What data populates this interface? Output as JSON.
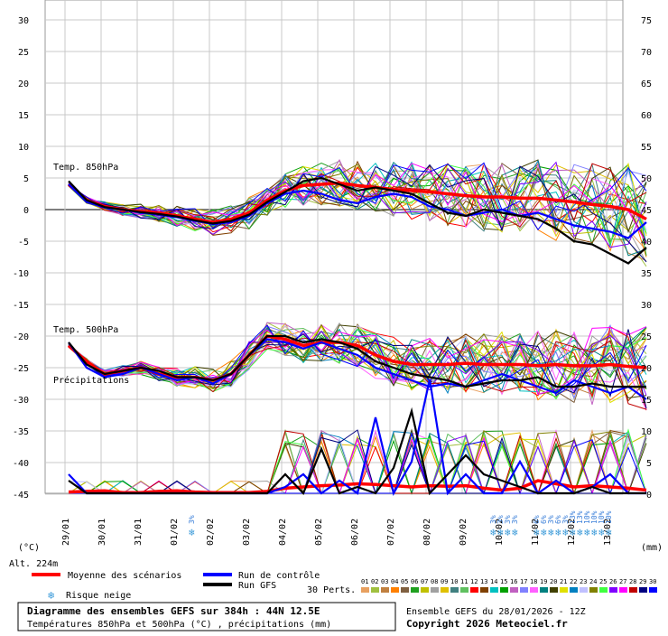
{
  "chart_data": {
    "type": "line",
    "left_axis_label": "(°C)",
    "right_axis_label": "(mm)",
    "left_ticks": [
      30,
      25,
      20,
      15,
      10,
      5,
      0,
      -5,
      -10,
      -15,
      -20,
      -25,
      -30,
      -35,
      -40,
      -45
    ],
    "right_ticks": [
      75,
      70,
      65,
      60,
      55,
      50,
      45,
      40,
      35,
      30,
      25,
      20,
      15,
      10,
      5,
      0
    ],
    "dates": [
      "29/01",
      "30/01",
      "31/01",
      "01/02",
      "02/02",
      "03/02",
      "04/02",
      "05/02",
      "06/02",
      "07/02",
      "08/02",
      "09/02",
      "10/02",
      "11/02",
      "12/02",
      "13/02"
    ],
    "panel_labels": {
      "t850": "Temp. 850hPa",
      "t500": "Temp. 500hPa",
      "precip": "Précipitations"
    },
    "altitude": "Alt. 224m",
    "legend": {
      "mean": "Moyenne des scénarios",
      "control": "Run de contrôle",
      "gfs": "Run GFS",
      "snow": "Risque neige",
      "perts": "30 Perts.",
      "pert_numbers": [
        "01",
        "02",
        "03",
        "04",
        "05",
        "06",
        "07",
        "08",
        "09",
        "10",
        "11",
        "12",
        "13",
        "14",
        "15",
        "16",
        "17",
        "18",
        "19",
        "20",
        "21",
        "22",
        "23",
        "24",
        "25",
        "26",
        "27",
        "28",
        "29",
        "30"
      ]
    },
    "pert_colors": [
      "#e8a060",
      "#a0c040",
      "#c08040",
      "#ff8000",
      "#806040",
      "#20a020",
      "#c0c000",
      "#a0a0a0",
      "#e0c000",
      "#408080",
      "#60c060",
      "#ff0000",
      "#804000",
      "#00c0c0",
      "#00a000",
      "#c060c0",
      "#8080ff",
      "#ff60ff",
      "#008080",
      "#404000",
      "#e0e000",
      "#0080c0",
      "#c0c0ff",
      "#808000",
      "#40ff40",
      "#8000ff",
      "#ff00ff",
      "#c00000",
      "#000080",
      "#0000ff"
    ],
    "snow_risk": [
      {
        "date_index": 3.5,
        "labels": [
          "3%"
        ]
      },
      {
        "date_index": 12.1,
        "labels": [
          "3%",
          "3%",
          "3%",
          "3%"
        ]
      },
      {
        "date_index": 13.3,
        "labels": [
          "6%",
          "6%",
          "3%",
          "6%",
          "3%",
          "13%",
          "13%",
          "10%",
          "10%",
          "10%",
          "10%"
        ]
      }
    ],
    "series": [
      {
        "name": "Moyenne des scénarios",
        "panel": "t850",
        "color": "#ff0000",
        "x": [
          0,
          0.5,
          1,
          1.5,
          2,
          2.5,
          3,
          3.5,
          4,
          4.5,
          5,
          5.5,
          6,
          6.5,
          7,
          7.5,
          8,
          8.5,
          9,
          9.5,
          10,
          10.5,
          11,
          11.5,
          12,
          12.5,
          13,
          13.5,
          14,
          14.5,
          15,
          15.5,
          16
        ],
        "y": [
          4,
          1.5,
          0.5,
          0,
          -0.3,
          -0.5,
          -1,
          -1.5,
          -2,
          -1.5,
          -0.5,
          1.5,
          3,
          3.8,
          4,
          4.2,
          3.8,
          3.5,
          3.2,
          3,
          2.8,
          2.5,
          2.2,
          2,
          2,
          1.8,
          1.8,
          1.5,
          1.2,
          0.8,
          0.5,
          0,
          -1.5
        ]
      },
      {
        "name": "Run de contrôle",
        "panel": "t850",
        "color": "#0000ff",
        "x": [
          0,
          0.5,
          1,
          1.5,
          2,
          2.5,
          3,
          3.5,
          4,
          4.5,
          5,
          5.5,
          6,
          6.5,
          7,
          7.5,
          8,
          8.5,
          9,
          9.5,
          10,
          10.5,
          11,
          11.5,
          12,
          12.5,
          13,
          13.5,
          14,
          14.5,
          15,
          15.5,
          16
        ],
        "y": [
          4,
          1.2,
          0.3,
          0,
          -0.5,
          -0.8,
          -1.2,
          -1.8,
          -2.3,
          -2,
          -1,
          1,
          2.5,
          3,
          2.5,
          1.5,
          1,
          2,
          2.5,
          2,
          0.5,
          0,
          -1,
          -0.5,
          0,
          -1,
          -0.5,
          -1.5,
          -2.5,
          -3,
          -3.5,
          -4.5,
          -2
        ]
      },
      {
        "name": "Run GFS",
        "panel": "t850",
        "color": "#000000",
        "x": [
          0,
          0.5,
          1,
          1.5,
          2,
          2.5,
          3,
          3.5,
          4,
          4.5,
          5,
          5.5,
          6,
          6.5,
          7,
          7.5,
          8,
          8.5,
          9,
          9.5,
          10,
          10.5,
          11,
          11.5,
          12,
          12.5,
          13,
          13.5,
          14,
          14.5,
          15,
          15.5,
          16
        ],
        "y": [
          4.5,
          1.5,
          0.4,
          0,
          -0.4,
          -0.7,
          -1.1,
          -1.7,
          -2.2,
          -1.8,
          -0.8,
          1.2,
          2.8,
          4.5,
          5,
          4,
          3,
          3.5,
          3,
          2.5,
          1,
          -0.5,
          -1,
          0,
          -0.5,
          -1,
          -1.5,
          -3,
          -5,
          -5.5,
          -7,
          -8.5,
          -6
        ]
      },
      {
        "name": "Moyenne des scénarios",
        "panel": "t500",
        "color": "#ff0000",
        "x": [
          0,
          0.5,
          1,
          1.5,
          2,
          2.5,
          3,
          3.5,
          4,
          4.5,
          5,
          5.5,
          6,
          6.5,
          7,
          7.5,
          8,
          8.5,
          9,
          9.5,
          10,
          10.5,
          11,
          11.5,
          12,
          12.5,
          13,
          13.5,
          14,
          14.5,
          15,
          15.5,
          16
        ],
        "y": [
          -21.5,
          -24,
          -26,
          -25.5,
          -25,
          -26,
          -26.5,
          -26.5,
          -27,
          -26,
          -23,
          -20,
          -20.5,
          -21.5,
          -21,
          -21,
          -21.5,
          -23,
          -24,
          -24.5,
          -24.5,
          -24.5,
          -24.3,
          -24.5,
          -24.5,
          -24.5,
          -24.7,
          -24.5,
          -24.7,
          -24.7,
          -24.5,
          -24.8,
          -25
        ]
      },
      {
        "name": "Run de contrôle",
        "panel": "t500",
        "color": "#0000ff",
        "x": [
          0,
          0.5,
          1,
          1.5,
          2,
          2.5,
          3,
          3.5,
          4,
          4.5,
          5,
          5.5,
          6,
          6.5,
          7,
          7.5,
          8,
          8.5,
          9,
          9.5,
          10,
          10.5,
          11,
          11.5,
          12,
          12.5,
          13,
          13.5,
          14,
          14.5,
          15,
          15.5,
          16
        ],
        "y": [
          -21,
          -25,
          -26.5,
          -26,
          -25,
          -26,
          -27,
          -26.5,
          -27.5,
          -26,
          -23,
          -20.5,
          -21,
          -22,
          -21,
          -22,
          -23,
          -25,
          -26,
          -27,
          -28,
          -27.5,
          -28,
          -27,
          -26,
          -27,
          -28,
          -29,
          -27,
          -28,
          -29,
          -28,
          -30
        ]
      },
      {
        "name": "Run GFS",
        "panel": "t500",
        "color": "#000000",
        "x": [
          0,
          0.5,
          1,
          1.5,
          2,
          2.5,
          3,
          3.5,
          4,
          4.5,
          5,
          5.5,
          6,
          6.5,
          7,
          7.5,
          8,
          8.5,
          9,
          9.5,
          10,
          10.5,
          11,
          11.5,
          12,
          12.5,
          13,
          13.5,
          14,
          14.5,
          15,
          15.5,
          16
        ],
        "y": [
          -21,
          -24.5,
          -26,
          -25.5,
          -25,
          -25.5,
          -26.5,
          -26.5,
          -27,
          -26,
          -23,
          -20,
          -20,
          -21,
          -20.5,
          -21,
          -22,
          -24,
          -25,
          -26,
          -26.5,
          -27,
          -28,
          -27.5,
          -27,
          -27,
          -26.5,
          -28,
          -28,
          -27.5,
          -28,
          -28,
          -28
        ]
      },
      {
        "name": "Moyenne des scénarios",
        "panel": "precip",
        "color": "#ff0000",
        "x": [
          0,
          0.5,
          1,
          1.5,
          2,
          2.5,
          3,
          3.5,
          4,
          4.5,
          5,
          5.5,
          6,
          6.5,
          7,
          7.5,
          8,
          8.5,
          9,
          9.5,
          10,
          10.5,
          11,
          11.5,
          12,
          12.5,
          13,
          13.5,
          14,
          14.5,
          15,
          15.5,
          16
        ],
        "y": [
          0.2,
          0.3,
          0.4,
          0.1,
          0.1,
          0.3,
          0.4,
          0.2,
          0.1,
          0.1,
          0.1,
          0.3,
          0.8,
          1,
          1.2,
          1.3,
          1.5,
          1.4,
          1.2,
          1,
          1.2,
          1.1,
          1.2,
          0.8,
          0.5,
          0.8,
          2,
          1.5,
          1,
          1.2,
          1,
          0.8,
          0.5
        ]
      },
      {
        "name": "Run de contrôle",
        "panel": "precip",
        "color": "#0000ff",
        "x": [
          0,
          0.5,
          1,
          1.5,
          2,
          2.5,
          3,
          3.5,
          4,
          4.5,
          5,
          5.5,
          6,
          6.5,
          7,
          7.5,
          8,
          8.5,
          9,
          9.5,
          10,
          10.5,
          11,
          11.5,
          12,
          12.5,
          13,
          13.5,
          14,
          14.5,
          15,
          15.5,
          16
        ],
        "y": [
          3,
          0,
          0,
          0,
          0,
          0,
          0,
          0,
          0,
          0,
          0,
          0,
          1,
          3,
          0,
          2,
          0,
          12,
          0,
          5,
          18,
          0,
          3,
          0,
          0,
          5,
          0,
          2,
          0,
          1,
          3,
          0,
          0
        ]
      },
      {
        "name": "Run GFS",
        "panel": "precip",
        "color": "#000000",
        "x": [
          0,
          0.5,
          1,
          1.5,
          2,
          2.5,
          3,
          3.5,
          4,
          4.5,
          5,
          5.5,
          6,
          6.5,
          7,
          7.5,
          8,
          8.5,
          9,
          9.5,
          10,
          10.5,
          11,
          11.5,
          12,
          12.5,
          13,
          13.5,
          14,
          14.5,
          15,
          15.5,
          16
        ],
        "y": [
          2,
          0,
          0,
          0,
          0,
          0,
          0,
          0,
          0,
          0,
          0,
          0,
          3,
          0,
          7,
          0,
          1,
          0,
          4,
          13,
          0,
          3,
          6,
          3,
          2,
          1,
          0,
          0,
          0,
          1,
          0,
          0,
          0
        ]
      }
    ]
  },
  "footer": {
    "title": "Diagramme des ensembles GEFS sur 384h : 44N 12.5E",
    "subtitle": "Températures 850hPa et 500hPa (°C) , précipitations (mm)",
    "run": "Ensemble GEFS du 28/01/2026 - 12Z",
    "copyright": "Copyright 2026 Meteociel.fr"
  }
}
